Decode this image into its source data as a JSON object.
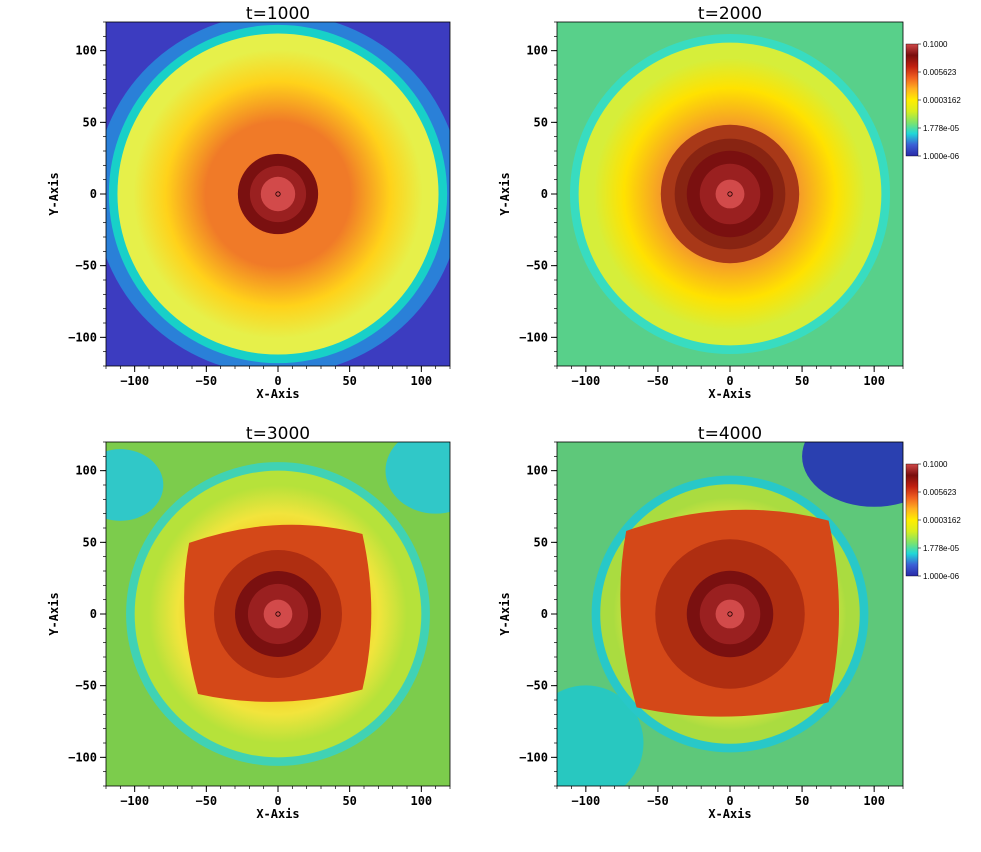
{
  "chart_data": [
    {
      "type": "heatmap",
      "title": "t=1000",
      "xlabel": "X-Axis",
      "ylabel": "Y-Axis",
      "xlim": [
        -120,
        120
      ],
      "ylim": [
        -120,
        120
      ],
      "x_ticks": [
        -100,
        -50,
        0,
        50,
        100
      ],
      "y_ticks": [
        -100,
        -50,
        0,
        50,
        100
      ],
      "x_tick_labels": [
        "−100",
        "−50",
        "0",
        "50",
        "100"
      ],
      "y_tick_labels": [
        "−100",
        "−50",
        "0",
        "50",
        "100"
      ],
      "colorbar": false,
      "core": {
        "inner_radius": 12,
        "dark_shell_radius": 28,
        "perturbed_radius": 0,
        "disk_radius": 112,
        "shape": "round"
      }
    },
    {
      "type": "heatmap",
      "title": "t=2000",
      "xlabel": "X-Axis",
      "ylabel": "Y-Axis",
      "xlim": [
        -120,
        120
      ],
      "ylim": [
        -120,
        120
      ],
      "x_ticks": [
        -100,
        -50,
        0,
        50,
        100
      ],
      "y_ticks": [
        -100,
        -50,
        0,
        50,
        100
      ],
      "x_tick_labels": [
        "−100",
        "−50",
        "0",
        "50",
        "100"
      ],
      "y_tick_labels": [
        "−100",
        "−50",
        "0",
        "50",
        "100"
      ],
      "colorbar": true,
      "core": {
        "inner_radius": 10,
        "dark_shell_radius": 30,
        "perturbed_radius": 48,
        "disk_radius": 105,
        "shape": "round"
      }
    },
    {
      "type": "heatmap",
      "title": "t=3000",
      "xlabel": "X-Axis",
      "ylabel": "Y-Axis",
      "xlim": [
        -120,
        120
      ],
      "ylim": [
        -120,
        120
      ],
      "x_ticks": [
        -100,
        -50,
        0,
        50,
        100
      ],
      "y_ticks": [
        -100,
        -50,
        0,
        50,
        100
      ],
      "x_tick_labels": [
        "−100",
        "−50",
        "0",
        "50",
        "100"
      ],
      "y_tick_labels": [
        "−100",
        "−50",
        "0",
        "50",
        "100"
      ],
      "colorbar": false,
      "core": {
        "inner_radius": 10,
        "dark_shell_radius": 30,
        "perturbed_radius": 62,
        "disk_radius": 100,
        "shape": "square"
      }
    },
    {
      "type": "heatmap",
      "title": "t=4000",
      "xlabel": "X-Axis",
      "ylabel": "Y-Axis",
      "xlim": [
        -120,
        120
      ],
      "ylim": [
        -120,
        120
      ],
      "x_ticks": [
        -100,
        -50,
        0,
        50,
        100
      ],
      "y_ticks": [
        -100,
        -50,
        0,
        50,
        100
      ],
      "x_tick_labels": [
        "−100",
        "−50",
        "0",
        "50",
        "100"
      ],
      "y_tick_labels": [
        "−100",
        "−50",
        "0",
        "50",
        "100"
      ],
      "colorbar": true,
      "core": {
        "inner_radius": 10,
        "dark_shell_radius": 30,
        "perturbed_radius": 72,
        "disk_radius": 90,
        "shape": "square"
      }
    }
  ],
  "colorbar": {
    "scale": "log",
    "range": [
      1e-06,
      0.1
    ],
    "tick_labels": [
      "0.1000",
      "0.005623",
      "0.0003162",
      "1.778e-05",
      "1.000e-06"
    ],
    "colormap": [
      "#2a2aa8",
      "#3b5fd6",
      "#20d8d8",
      "#7fe46a",
      "#d8ee20",
      "#ffee00",
      "#ffb020",
      "#f06020",
      "#c02010",
      "#7a0e0e",
      "#d04848"
    ]
  }
}
